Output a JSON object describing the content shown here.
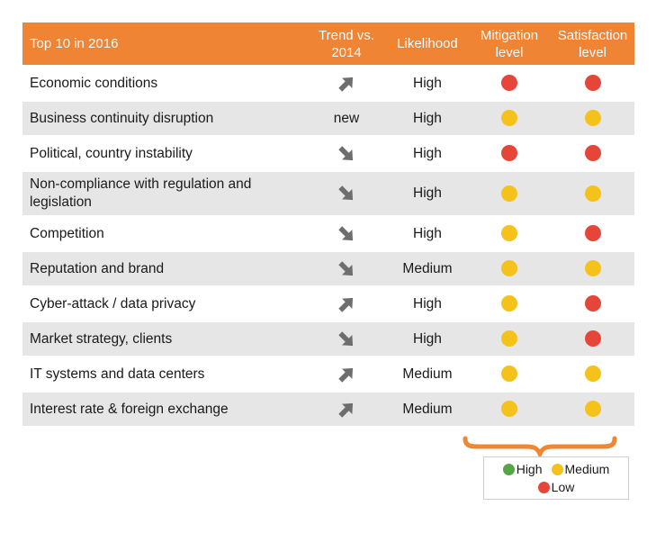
{
  "table": {
    "columns": [
      "Top 10 in 2016",
      "Trend vs. 2014",
      "Likelihood",
      "Mitigation level",
      "Satisfaction level"
    ]
  },
  "rows": [
    {
      "name": "Economic conditions",
      "trend": "up",
      "likelihood": "High",
      "mitigation": "low",
      "satisfaction": "low"
    },
    {
      "name": "Business continuity disruption",
      "trend": "new",
      "likelihood": "High",
      "mitigation": "medium",
      "satisfaction": "medium"
    },
    {
      "name": "Political, country instability",
      "trend": "down",
      "likelihood": "High",
      "mitigation": "low",
      "satisfaction": "low"
    },
    {
      "name": "Non-compliance with regulation and legislation",
      "trend": "down",
      "likelihood": "High",
      "mitigation": "medium",
      "satisfaction": "medium"
    },
    {
      "name": "Competition",
      "trend": "down",
      "likelihood": "High",
      "mitigation": "medium",
      "satisfaction": "low"
    },
    {
      "name": "Reputation and brand",
      "trend": "down",
      "likelihood": "Medium",
      "mitigation": "medium",
      "satisfaction": "medium"
    },
    {
      "name": "Cyber-attack / data privacy",
      "trend": "up",
      "likelihood": "High",
      "mitigation": "medium",
      "satisfaction": "low"
    },
    {
      "name": "Market strategy, clients",
      "trend": "down",
      "likelihood": "High",
      "mitigation": "medium",
      "satisfaction": "low"
    },
    {
      "name": "IT systems and data centers",
      "trend": "up",
      "likelihood": "Medium",
      "mitigation": "medium",
      "satisfaction": "medium"
    },
    {
      "name": "Interest rate & foreign exchange",
      "trend": "up",
      "likelihood": "Medium",
      "mitigation": "medium",
      "satisfaction": "medium"
    }
  ],
  "legend": {
    "items": [
      {
        "label": "High",
        "level": "high"
      },
      {
        "label": "Medium",
        "level": "medium"
      },
      {
        "label": "Low",
        "level": "low"
      }
    ]
  },
  "colors": {
    "header_bg": "#EE8434",
    "row_alt_bg": "#E6E6E6",
    "text": "#1A1A1A",
    "arrow": "#6E6E6E",
    "dot_high": "#55A646",
    "dot_medium": "#F5C21B",
    "dot_low": "#E64539",
    "brace": "#ED8733",
    "legend_border": "#CFCFCF"
  }
}
